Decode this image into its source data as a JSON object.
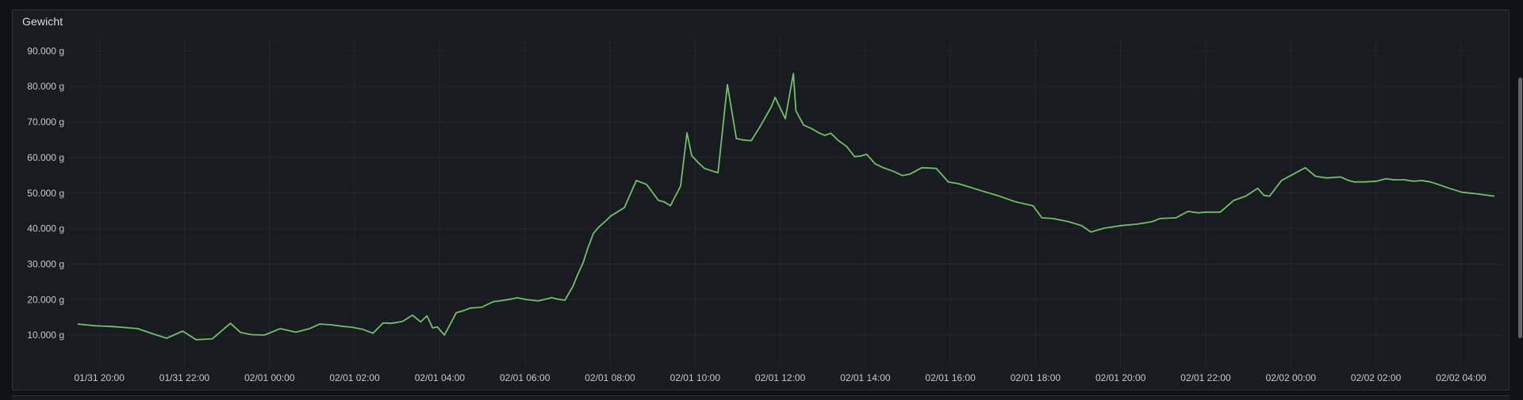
{
  "page": {
    "background": "#111217"
  },
  "panel": {
    "title": "Gewicht",
    "background": "#181b1f",
    "border_color": "#2f3237"
  },
  "scrollbar": {
    "thumb_color": "#63656a"
  },
  "chart_data": {
    "type": "line",
    "title": "Gewicht",
    "unit": "g",
    "grid": true,
    "legend": "none",
    "axis_text_color": "#c7c8cd",
    "grid_color": "rgba(204,204,220,0.07)",
    "x_axis_note": "time, hours since 01/31 00:00",
    "xlim": [
      19.25,
      52.99
    ],
    "ylim": [
      1300,
      93600
    ],
    "yticks": [
      {
        "v": 10000,
        "label": "10.000 g"
      },
      {
        "v": 20000,
        "label": "20.000 g"
      },
      {
        "v": 30000,
        "label": "30.000 g"
      },
      {
        "v": 40000,
        "label": "40.000 g"
      },
      {
        "v": 50000,
        "label": "50.000 g"
      },
      {
        "v": 60000,
        "label": "60.000 g"
      },
      {
        "v": 70000,
        "label": "70.000 g"
      },
      {
        "v": 80000,
        "label": "80.000 g"
      },
      {
        "v": 90000,
        "label": "90.000 g"
      }
    ],
    "xticks": [
      {
        "t": 20,
        "label": "01/31 20:00"
      },
      {
        "t": 22,
        "label": "01/31 22:00"
      },
      {
        "t": 24,
        "label": "02/01 00:00"
      },
      {
        "t": 26,
        "label": "02/01 02:00"
      },
      {
        "t": 28,
        "label": "02/01 04:00"
      },
      {
        "t": 30,
        "label": "02/01 06:00"
      },
      {
        "t": 32,
        "label": "02/01 08:00"
      },
      {
        "t": 34,
        "label": "02/01 10:00"
      },
      {
        "t": 36,
        "label": "02/01 12:00"
      },
      {
        "t": 38,
        "label": "02/01 14:00"
      },
      {
        "t": 40,
        "label": "02/01 16:00"
      },
      {
        "t": 42,
        "label": "02/01 18:00"
      },
      {
        "t": 44,
        "label": "02/01 20:00"
      },
      {
        "t": 46,
        "label": "02/01 22:00"
      },
      {
        "t": 48,
        "label": "02/02 00:00"
      },
      {
        "t": 50,
        "label": "02/02 02:00"
      },
      {
        "t": 52,
        "label": "02/02 04:00"
      }
    ],
    "series": [
      {
        "name": "Gewicht",
        "color": "#73bf69",
        "line_width": 1.8,
        "points": [
          [
            19.5,
            13100
          ],
          [
            19.91,
            12600
          ],
          [
            20.28,
            12400
          ],
          [
            20.52,
            12200
          ],
          [
            20.9,
            11800
          ],
          [
            21.27,
            10300
          ],
          [
            21.58,
            9100
          ],
          [
            21.96,
            11100
          ],
          [
            22.27,
            8700
          ],
          [
            22.65,
            8900
          ],
          [
            23.08,
            13300
          ],
          [
            23.32,
            10700
          ],
          [
            23.58,
            10100
          ],
          [
            23.88,
            10000
          ],
          [
            24.25,
            11800
          ],
          [
            24.62,
            10800
          ],
          [
            24.94,
            11800
          ],
          [
            25.18,
            13100
          ],
          [
            25.44,
            12900
          ],
          [
            25.69,
            12500
          ],
          [
            25.93,
            12200
          ],
          [
            26.19,
            11600
          ],
          [
            26.43,
            10500
          ],
          [
            26.67,
            13400
          ],
          [
            26.86,
            13300
          ],
          [
            27.12,
            13800
          ],
          [
            27.36,
            15600
          ],
          [
            27.55,
            13700
          ],
          [
            27.7,
            15400
          ],
          [
            27.83,
            12000
          ],
          [
            27.94,
            12300
          ],
          [
            28.11,
            10000
          ],
          [
            28.39,
            16300
          ],
          [
            28.54,
            16800
          ],
          [
            28.72,
            17600
          ],
          [
            28.98,
            17800
          ],
          [
            29.26,
            19400
          ],
          [
            29.41,
            19600
          ],
          [
            29.66,
            20100
          ],
          [
            29.82,
            20500
          ],
          [
            30.03,
            20000
          ],
          [
            30.31,
            19600
          ],
          [
            30.63,
            20500
          ],
          [
            30.78,
            20100
          ],
          [
            30.94,
            19800
          ],
          [
            31.13,
            23700
          ],
          [
            31.24,
            27000
          ],
          [
            31.37,
            30400
          ],
          [
            31.48,
            34500
          ],
          [
            31.61,
            38600
          ],
          [
            31.74,
            40400
          ],
          [
            31.89,
            42000
          ],
          [
            32.02,
            43500
          ],
          [
            32.34,
            45900
          ],
          [
            32.62,
            53500
          ],
          [
            32.86,
            52400
          ],
          [
            33.14,
            47900
          ],
          [
            33.27,
            47500
          ],
          [
            33.42,
            46400
          ],
          [
            33.66,
            51900
          ],
          [
            33.81,
            66900
          ],
          [
            33.92,
            60500
          ],
          [
            34.07,
            58600
          ],
          [
            34.22,
            56900
          ],
          [
            34.45,
            56000
          ],
          [
            34.54,
            55700
          ],
          [
            34.76,
            80500
          ],
          [
            34.97,
            65300
          ],
          [
            35.13,
            64900
          ],
          [
            35.32,
            64700
          ],
          [
            35.53,
            68700
          ],
          [
            35.79,
            74200
          ],
          [
            35.88,
            76900
          ],
          [
            36.12,
            70900
          ],
          [
            36.31,
            83600
          ],
          [
            36.37,
            73100
          ],
          [
            36.55,
            69100
          ],
          [
            36.72,
            68200
          ],
          [
            36.91,
            66900
          ],
          [
            37.05,
            66200
          ],
          [
            37.19,
            66800
          ],
          [
            37.37,
            64700
          ],
          [
            37.56,
            63100
          ],
          [
            37.75,
            60200
          ],
          [
            37.9,
            60400
          ],
          [
            38.03,
            60900
          ],
          [
            38.23,
            58200
          ],
          [
            38.42,
            57100
          ],
          [
            38.68,
            56000
          ],
          [
            38.87,
            54900
          ],
          [
            39.05,
            55300
          ],
          [
            39.33,
            57100
          ],
          [
            39.67,
            56900
          ],
          [
            39.95,
            53100
          ],
          [
            40.19,
            52600
          ],
          [
            40.79,
            50400
          ],
          [
            41.1,
            49300
          ],
          [
            41.53,
            47500
          ],
          [
            41.94,
            46400
          ],
          [
            42.15,
            43000
          ],
          [
            42.41,
            42800
          ],
          [
            42.78,
            41900
          ],
          [
            43.08,
            40800
          ],
          [
            43.3,
            39000
          ],
          [
            43.62,
            40100
          ],
          [
            44.01,
            40800
          ],
          [
            44.38,
            41200
          ],
          [
            44.74,
            41900
          ],
          [
            44.92,
            42800
          ],
          [
            45.3,
            43000
          ],
          [
            45.58,
            44800
          ],
          [
            45.82,
            44400
          ],
          [
            46.01,
            44600
          ],
          [
            46.34,
            44600
          ],
          [
            46.66,
            47900
          ],
          [
            46.94,
            49100
          ],
          [
            47.22,
            51300
          ],
          [
            47.37,
            49300
          ],
          [
            47.5,
            49100
          ],
          [
            47.78,
            53500
          ],
          [
            48.0,
            54900
          ],
          [
            48.34,
            57100
          ],
          [
            48.58,
            54700
          ],
          [
            48.84,
            54200
          ],
          [
            49.17,
            54500
          ],
          [
            49.36,
            53500
          ],
          [
            49.49,
            53100
          ],
          [
            49.73,
            53100
          ],
          [
            50.01,
            53300
          ],
          [
            50.24,
            54000
          ],
          [
            50.42,
            53700
          ],
          [
            50.66,
            53700
          ],
          [
            50.89,
            53300
          ],
          [
            51.07,
            53500
          ],
          [
            51.28,
            53100
          ],
          [
            51.46,
            52400
          ],
          [
            51.72,
            51300
          ],
          [
            52.02,
            50200
          ],
          [
            52.4,
            49700
          ],
          [
            52.77,
            49100
          ]
        ]
      }
    ]
  }
}
